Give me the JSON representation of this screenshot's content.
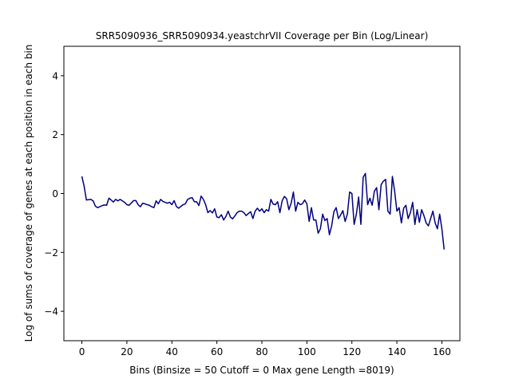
{
  "chart_data": {
    "type": "line",
    "title": "SRR5090936_SRR5090934.yeastchrVII Coverage per Bin (Log/Linear)",
    "xlabel": "Bins  (Binsize = 50 Cutoff = 0 Max gene Length =8019)",
    "ylabel": "Log of sums of coverage of genes at each position in each bin",
    "xlim": [
      -8,
      168
    ],
    "ylim": [
      -5,
      5
    ],
    "xticks": [
      0,
      20,
      40,
      60,
      80,
      100,
      120,
      140,
      160
    ],
    "yticks": [
      -4,
      -2,
      0,
      2,
      4
    ],
    "grid": false,
    "line_color": "#00007f",
    "series": [
      {
        "values": [
          0.58,
          0.25,
          -0.22,
          -0.21,
          -0.2,
          -0.25,
          -0.43,
          -0.48,
          -0.45,
          -0.41,
          -0.39,
          -0.4,
          -0.16,
          -0.22,
          -0.29,
          -0.2,
          -0.25,
          -0.2,
          -0.25,
          -0.3,
          -0.38,
          -0.4,
          -0.32,
          -0.24,
          -0.24,
          -0.38,
          -0.45,
          -0.33,
          -0.35,
          -0.38,
          -0.4,
          -0.45,
          -0.48,
          -0.25,
          -0.35,
          -0.2,
          -0.27,
          -0.3,
          -0.33,
          -0.3,
          -0.38,
          -0.24,
          -0.44,
          -0.5,
          -0.44,
          -0.38,
          -0.35,
          -0.2,
          -0.16,
          -0.14,
          -0.28,
          -0.28,
          -0.41,
          -0.09,
          -0.2,
          -0.38,
          -0.65,
          -0.58,
          -0.66,
          -0.52,
          -0.8,
          -0.82,
          -0.72,
          -0.9,
          -0.78,
          -0.6,
          -0.8,
          -0.86,
          -0.76,
          -0.65,
          -0.6,
          -0.6,
          -0.65,
          -0.75,
          -0.68,
          -0.62,
          -0.85,
          -0.6,
          -0.5,
          -0.6,
          -0.52,
          -0.65,
          -0.55,
          -0.6,
          -0.2,
          -0.36,
          -0.38,
          -0.28,
          -0.65,
          -0.25,
          -0.1,
          -0.18,
          -0.55,
          -0.33,
          0.05,
          -0.6,
          -0.3,
          -0.38,
          -0.35,
          -0.22,
          -0.35,
          -0.95,
          -0.48,
          -0.9,
          -0.9,
          -1.35,
          -1.2,
          -0.7,
          -0.92,
          -0.85,
          -1.4,
          -1.1,
          -0.62,
          -0.48,
          -0.85,
          -0.73,
          -0.58,
          -0.95,
          -0.7,
          0.05,
          0.0,
          -1.05,
          -0.7,
          -0.12,
          -1.05,
          0.55,
          0.68,
          -0.38,
          -0.16,
          -0.4,
          0.08,
          0.2,
          -0.55,
          0.3,
          0.42,
          0.48,
          -0.6,
          -0.7,
          0.58,
          0.08,
          -0.6,
          -0.48,
          -1.0,
          -0.5,
          -0.4,
          -0.85,
          -0.65,
          -0.3,
          -1.05,
          -0.55,
          -0.98,
          -0.55,
          -0.75,
          -1.0,
          -1.1,
          -0.85,
          -0.6,
          -1.0,
          -1.2,
          -0.7,
          -1.2,
          -1.9
        ]
      }
    ]
  }
}
